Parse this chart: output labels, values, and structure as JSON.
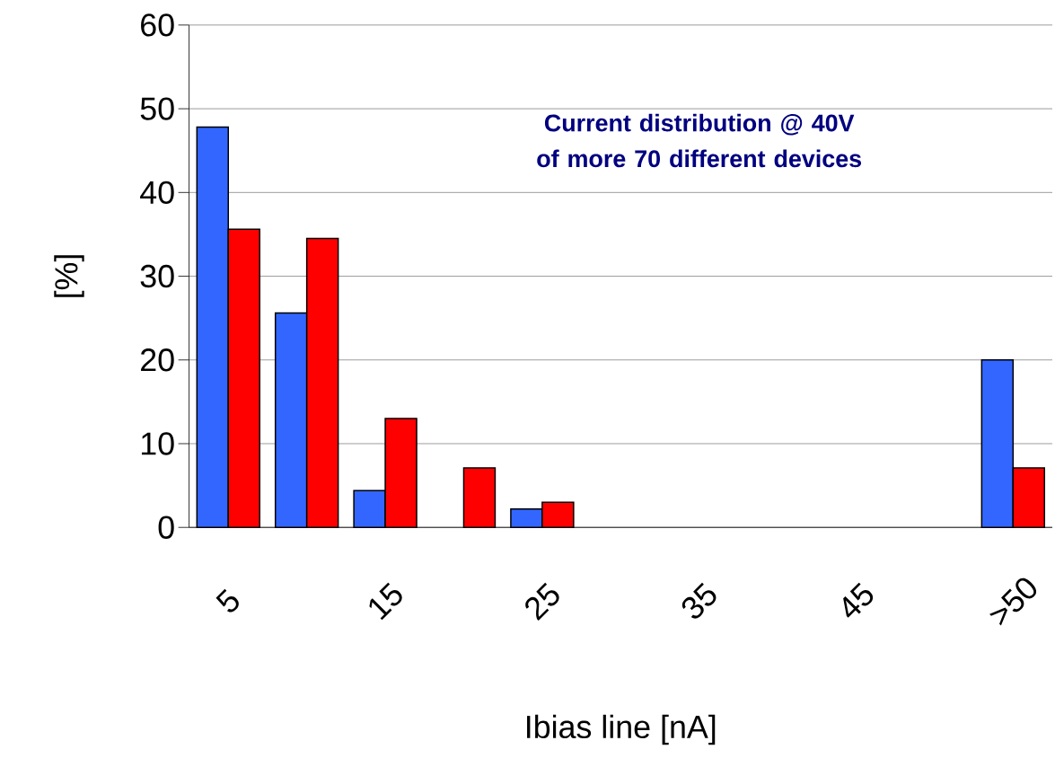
{
  "chart_data": {
    "type": "bar",
    "title": "Current distribution @ 40V\nof  more 70 different devices",
    "xlabel": "Ibias line [nA]",
    "ylabel": "[%]",
    "categories": [
      "5",
      null,
      "15",
      null,
      "25",
      null,
      "35",
      null,
      "45",
      null,
      ">50"
    ],
    "series": [
      {
        "color": "#3366ff",
        "values": [
          47.8,
          25.6,
          4.4,
          null,
          2.2,
          null,
          null,
          null,
          null,
          null,
          20.0
        ]
      },
      {
        "color": "#ff0000",
        "values": [
          35.6,
          34.5,
          13.0,
          7.1,
          3.0,
          null,
          null,
          null,
          null,
          null,
          7.1
        ]
      }
    ],
    "ylim": [
      0,
      60
    ],
    "yticks": [
      0,
      10,
      20,
      30,
      40,
      50,
      60
    ],
    "grid": "y"
  }
}
